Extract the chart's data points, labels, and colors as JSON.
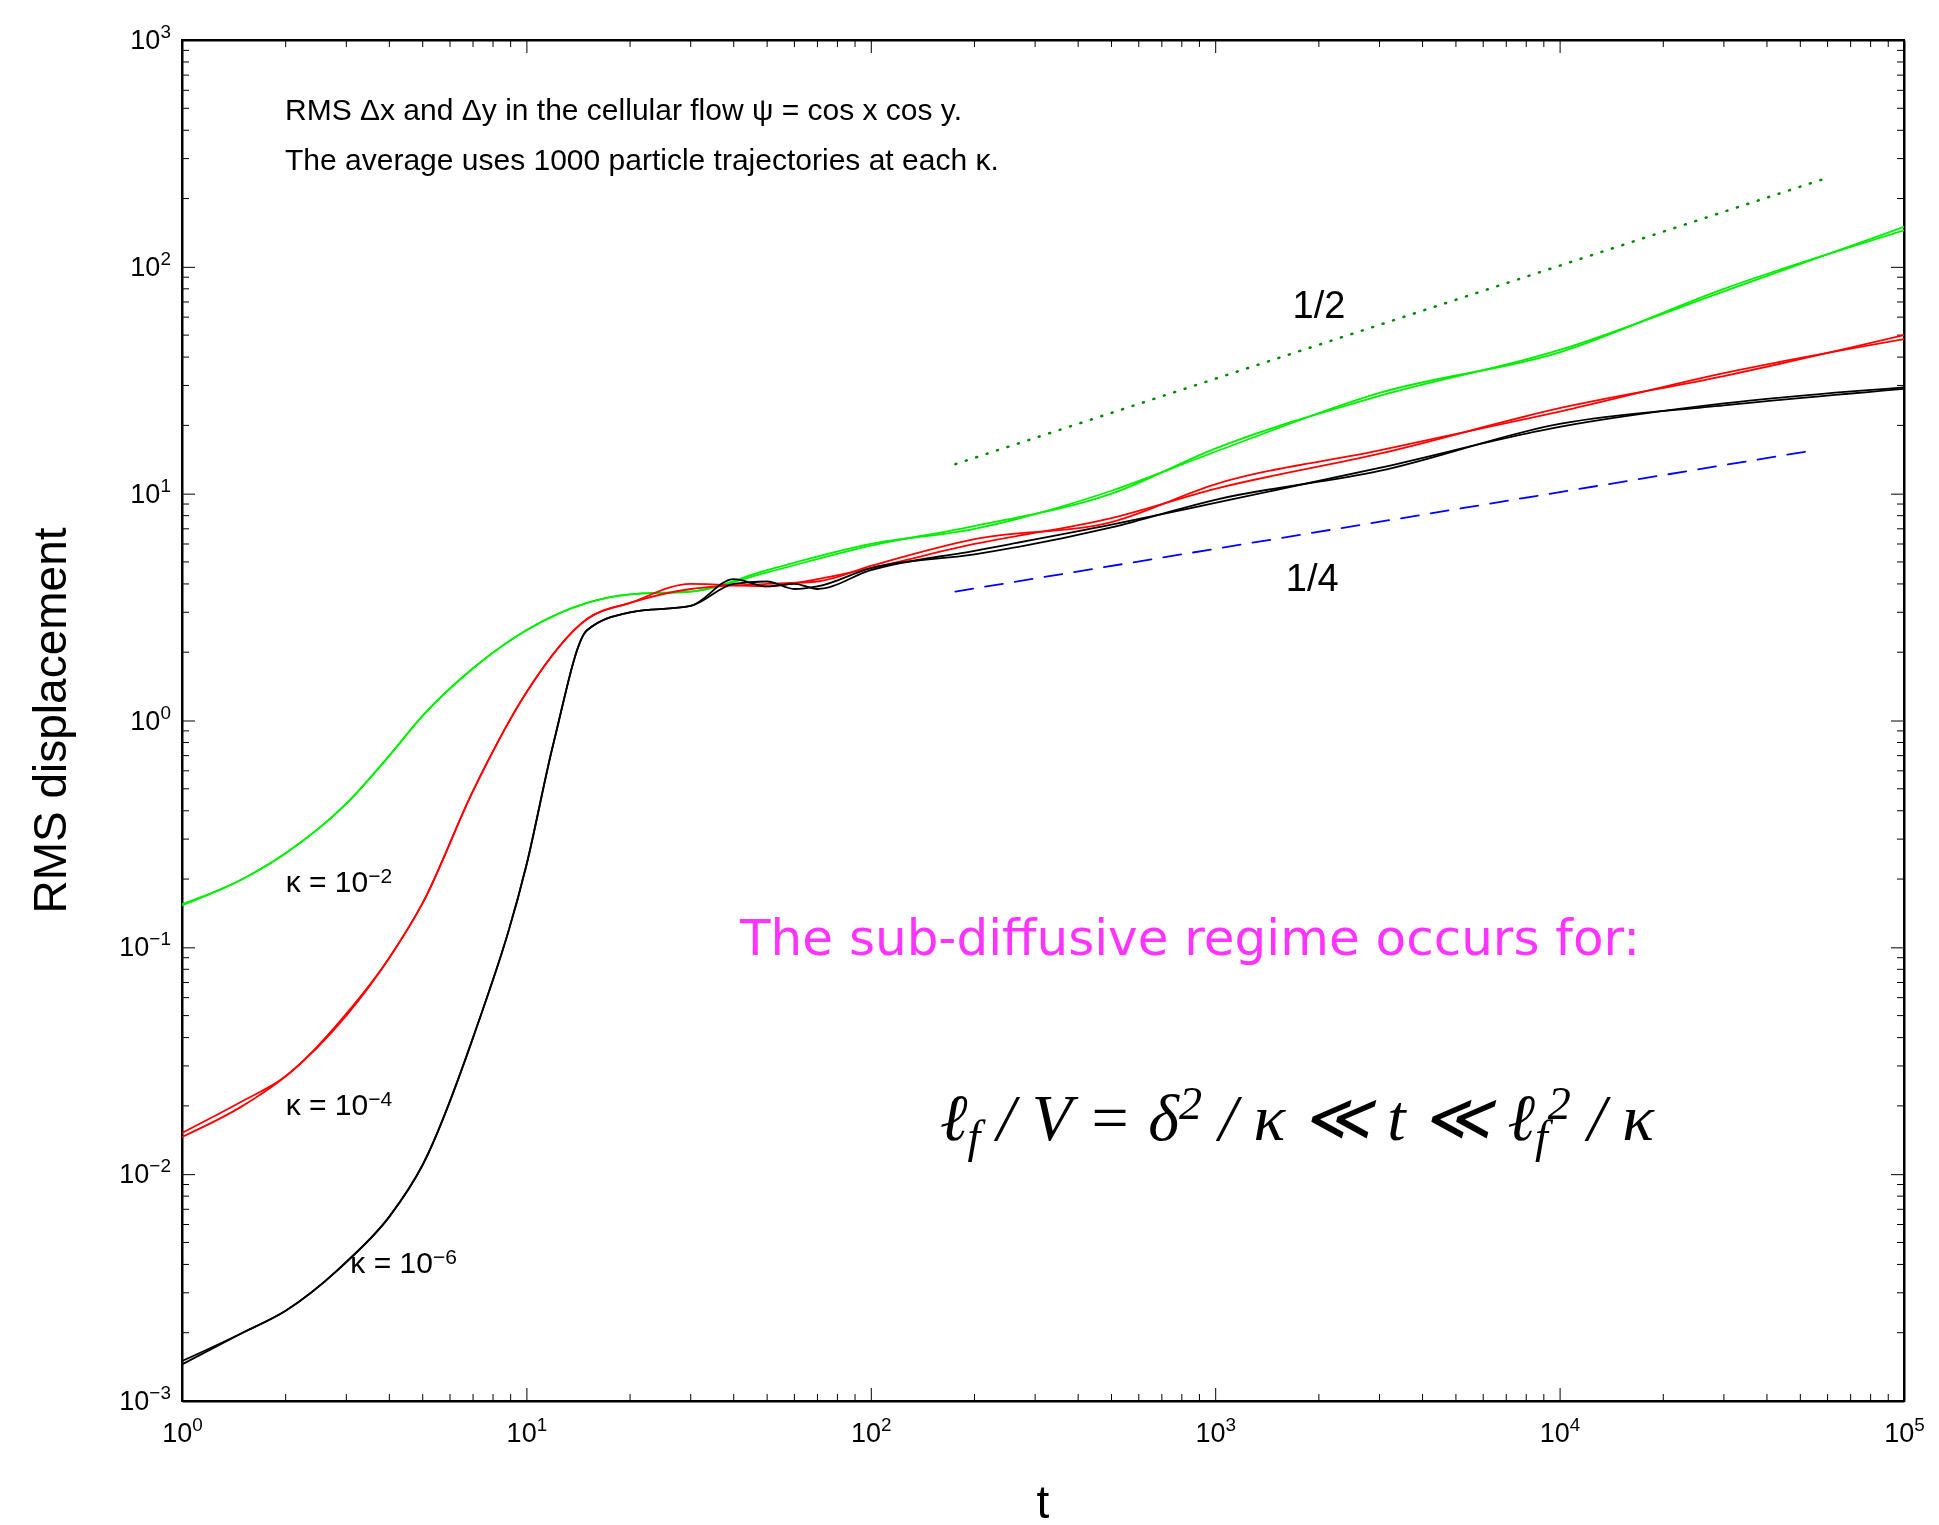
{
  "chart_data": {
    "type": "line",
    "xlabel": "t",
    "ylabel": "RMS displacement",
    "log": "xy",
    "grid": false,
    "xlim": [
      1,
      100000
    ],
    "ylim": [
      0.001,
      1000
    ],
    "xticks": [
      {
        "value": 1,
        "label": "10$^{0}$"
      },
      {
        "value": 10,
        "label": "10$^{1}$"
      },
      {
        "value": 100,
        "label": "10$^{2}$"
      },
      {
        "value": 1000,
        "label": "10$^{3}$"
      },
      {
        "value": 10000,
        "label": "10$^{4}$"
      },
      {
        "value": 100000,
        "label": "10$^{5}$"
      }
    ],
    "yticks": [
      {
        "value": 0.001,
        "label": "10$^{−3}$"
      },
      {
        "value": 0.01,
        "label": "10$^{−2}$"
      },
      {
        "value": 0.1,
        "label": "10$^{−1}$"
      },
      {
        "value": 1,
        "label": "10$^{0}$"
      },
      {
        "value": 10,
        "label": "10$^{1}$"
      },
      {
        "value": 100,
        "label": "10$^{2}$"
      },
      {
        "value": 1000,
        "label": "10$^{3}$"
      }
    ],
    "series": [
      {
        "name": "κ = 10$^{−2}$",
        "color": "#00ee00",
        "x": [
          1,
          1.5,
          2,
          3,
          4,
          5,
          7,
          10,
          15,
          20,
          30,
          50,
          100,
          200,
          500,
          1000,
          3000,
          10000,
          30000,
          100000
        ],
        "values": [
          0.153,
          0.2,
          0.26,
          0.43,
          0.7,
          1.05,
          1.7,
          2.5,
          3.3,
          3.6,
          3.7,
          4.5,
          5.9,
          7.2,
          10,
          15.8,
          27,
          43,
          78,
          150
        ]
      },
      {
        "color": "#00ee00",
        "x": [
          1,
          1.5,
          2,
          3,
          4,
          5,
          7,
          10,
          15,
          20,
          30,
          50,
          100,
          200,
          500,
          1000,
          3000,
          10000,
          30000,
          100000
        ],
        "values": [
          0.155,
          0.2,
          0.26,
          0.43,
          0.7,
          1.05,
          1.7,
          2.5,
          3.3,
          3.6,
          3.7,
          4.6,
          6.0,
          7.0,
          10.3,
          15.3,
          27.8,
          42,
          80,
          145
        ]
      },
      {
        "name": "κ = 10$^{−4}$",
        "color": "#ff0000",
        "x": [
          1,
          1.5,
          2,
          3,
          4,
          5,
          7,
          10,
          15,
          20,
          30,
          50,
          70,
          100,
          200,
          500,
          1000,
          3000,
          10000,
          30000,
          100000
        ],
        "values": [
          0.0152,
          0.021,
          0.027,
          0.051,
          0.09,
          0.157,
          0.49,
          1.33,
          2.8,
          3.3,
          4.0,
          3.9,
          4.2,
          4.7,
          6.0,
          7.8,
          10.5,
          15,
          23.8,
          33,
          50
        ]
      },
      {
        "color": "#ff0000",
        "x": [
          1,
          1.5,
          2,
          3,
          4,
          5,
          7,
          10,
          15,
          20,
          30,
          50,
          70,
          100,
          200,
          500,
          1000,
          3000,
          10000,
          30000,
          100000
        ],
        "values": [
          0.0146,
          0.02,
          0.027,
          0.05,
          0.09,
          0.157,
          0.49,
          1.33,
          2.8,
          3.3,
          3.8,
          4.0,
          4.1,
          4.8,
          6.3,
          7.5,
          11,
          15.5,
          23,
          34,
          48
        ]
      },
      {
        "name": "κ = 10$^{−6}$",
        "color": "#000000",
        "x": [
          1,
          1.5,
          2,
          3,
          4,
          5,
          7,
          10,
          12,
          15,
          20,
          30,
          40,
          50,
          60,
          70,
          100,
          200,
          500,
          1000,
          3000,
          10000,
          30000,
          100000
        ],
        "values": [
          0.0015,
          0.002,
          0.0025,
          0.0041,
          0.0065,
          0.011,
          0.04,
          0.23,
          0.8,
          2.5,
          3.0,
          3.2,
          4.2,
          3.9,
          4.0,
          3.8,
          4.6,
          5.6,
          7.3,
          9.1,
          13,
          19.7,
          25,
          29.4
        ]
      },
      {
        "color": "#000000",
        "x": [
          1,
          1.5,
          2,
          3,
          4,
          5,
          7,
          10,
          12,
          15,
          20,
          30,
          40,
          50,
          60,
          70,
          100,
          200,
          500,
          1000,
          3000,
          10000,
          30000,
          100000
        ],
        "values": [
          0.00145,
          0.002,
          0.0025,
          0.0041,
          0.0065,
          0.011,
          0.04,
          0.23,
          0.8,
          2.5,
          3.0,
          3.2,
          4.0,
          4.1,
          3.8,
          3.9,
          4.7,
          5.4,
          7.1,
          9.4,
          12.6,
          20.3,
          24.5,
          29
        ]
      },
      {
        "name": "1/2",
        "color": "#008800",
        "line_style": "dotted",
        "x": [
          176,
          57500
        ],
        "values": [
          13.5,
          242
        ]
      },
      {
        "name": "1/4",
        "color": "#0000ff",
        "line_style": "dashed",
        "x": [
          176,
          51600
        ],
        "values": [
          3.7,
          15.3
        ]
      }
    ],
    "annotations": [
      "RMS Δx and Δy in the cellular flow ψ = cos x cos y.",
      "The average uses 1000 particle trajectories at each κ.",
      "The sub-diffusive regime occurs for:",
      "ℓ$_{f}$ / V = δ$^{2}$ / κ ≪ t ≪ ℓ$_{f}$$^{2}$ / κ"
    ]
  }
}
